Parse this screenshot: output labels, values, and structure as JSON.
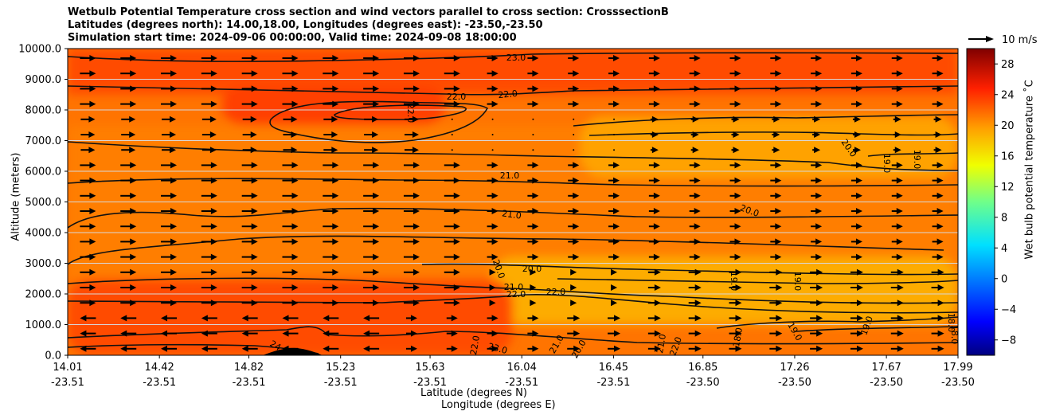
{
  "chart_data": {
    "type": "heatmap",
    "title_lines": [
      "Wetbulb Potential Temperature cross section and wind vectors parallel to cross section: CrosssectionB",
      "Latitudes (degrees north): 14.00,18.00, Longitudes (degrees east): -23.50,-23.50",
      "Simulation start time: 2024-09-06 00:00:00, Valid time: 2024-09-08 18:00:00"
    ],
    "ylabel": "Altitude (meters)",
    "xlabel_lat": "Latitude (degrees N)",
    "xlabel_lon": "Longitude (degrees E)",
    "ylim": [
      0,
      10000
    ],
    "yticks": [
      "0.0",
      "1000.0",
      "2000.0",
      "3000.0",
      "4000.0",
      "5000.0",
      "6000.0",
      "7000.0",
      "8000.0",
      "9000.0",
      "10000.0"
    ],
    "xlim": [
      14.01,
      17.99
    ],
    "xticks": [
      {
        "lat": "14.01",
        "lon": "-23.51",
        "pos": 14.01
      },
      {
        "lat": "14.42",
        "lon": "-23.51",
        "pos": 14.42
      },
      {
        "lat": "14.82",
        "lon": "-23.51",
        "pos": 14.82
      },
      {
        "lat": "15.23",
        "lon": "-23.51",
        "pos": 15.23
      },
      {
        "lat": "15.63",
        "lon": "-23.51",
        "pos": 15.63
      },
      {
        "lat": "16.04",
        "lon": "-23.51",
        "pos": 16.04
      },
      {
        "lat": "16.45",
        "lon": "-23.51",
        "pos": 16.45
      },
      {
        "lat": "16.85",
        "lon": "-23.50",
        "pos": 16.85
      },
      {
        "lat": "17.26",
        "lon": "-23.50",
        "pos": 17.26
      },
      {
        "lat": "17.67",
        "lon": "-23.50",
        "pos": 17.67
      },
      {
        "lat": "17.99",
        "lon": "-23.50",
        "pos": 17.99
      }
    ],
    "colorbar": {
      "label": "Wet bulb potential temperature ˚C",
      "min": -10,
      "max": 30,
      "ticks": [
        "−8",
        "−4",
        "0",
        "4",
        "8",
        "12",
        "16",
        "20",
        "24",
        "28"
      ]
    },
    "wind_key": {
      "label": "10 m/s",
      "speed": 10
    },
    "contour_labels": [
      "23.0",
      "22.0",
      "22.0",
      "22.0",
      "21.0",
      "21.0",
      "20.0",
      "20.0",
      "20.0",
      "19.0",
      "19.0",
      "19.0",
      "19.0",
      "20.0",
      "21.0",
      "22.0",
      "22.0",
      "22.0",
      "23.0",
      "21.0",
      "20.0",
      "21.0",
      "22.0",
      "19.0",
      "18.0",
      "24",
      "19.0",
      "18.0",
      "18.0"
    ],
    "regions": [
      {
        "name": "upper-warm-band",
        "alt_range": [
          8500,
          10000
        ],
        "value": 23
      },
      {
        "name": "upper-left-core",
        "alt_range": [
          7500,
          8800
        ],
        "lat_range": [
          14.7,
          15.7
        ],
        "value": 23.5
      },
      {
        "name": "mid-layer",
        "alt_range": [
          2500,
          7500
        ],
        "value": 21
      },
      {
        "name": "north-cool-tongue",
        "alt_range": [
          5800,
          7800
        ],
        "lat_range": [
          16.3,
          17.99
        ],
        "value": 19.5
      },
      {
        "name": "lower-cool-tongue",
        "alt_range": [
          1000,
          3200
        ],
        "lat_range": [
          15.9,
          17.99
        ],
        "value": 19
      },
      {
        "name": "boundary-warm",
        "alt_range": [
          0,
          2500
        ],
        "lat_range": [
          14.01,
          16.0
        ],
        "value": 23
      },
      {
        "name": "terrain",
        "alt_range": [
          0,
          250
        ],
        "lat_range": [
          14.8,
          15.05
        ],
        "value": null
      }
    ]
  }
}
